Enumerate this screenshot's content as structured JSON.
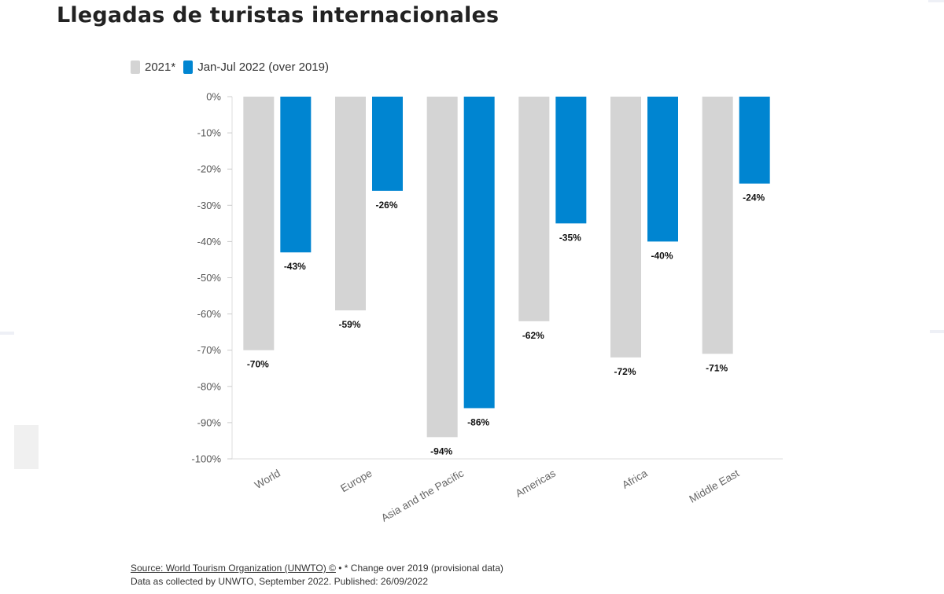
{
  "title": "Llegadas de turistas internacionales",
  "footer": {
    "source_link": "Source: World Tourism Organization (UNWTO) ©",
    "source_note": " • * Change over 2019 (provisional data)",
    "collected": "Data as collected by UNWTO, September 2022. Published: 26/09/2022"
  },
  "colors": {
    "series_2021": "#d4d4d4",
    "series_2022": "#0085d1"
  },
  "chart_data": {
    "type": "bar",
    "title": "Llegadas de turistas internacionales",
    "xlabel": "",
    "ylabel": "",
    "ylim": [
      -100,
      0
    ],
    "yticks": [
      0,
      -10,
      -20,
      -30,
      -40,
      -50,
      -60,
      -70,
      -80,
      -90,
      -100
    ],
    "ytick_labels": [
      "0%",
      "-10%",
      "-20%",
      "-30%",
      "-40%",
      "-50%",
      "-60%",
      "-70%",
      "-80%",
      "-90%",
      "-100%"
    ],
    "categories": [
      "World",
      "Europe",
      "Asia and the Pacific",
      "Americas",
      "Africa",
      "Middle East"
    ],
    "grid": false,
    "legend_position": "top-left",
    "series": [
      {
        "name": "2021*",
        "color": "#d4d4d4",
        "values": [
          -70,
          -59,
          -94,
          -62,
          -72,
          -71
        ],
        "labels": [
          "-70%",
          "-59%",
          "-94%",
          "-62%",
          "-72%",
          "-71%"
        ]
      },
      {
        "name": "Jan-Jul 2022 (over 2019)",
        "color": "#0085d1",
        "values": [
          -43,
          -26,
          -86,
          -35,
          -40,
          -24
        ],
        "labels": [
          "-43%",
          "-26%",
          "-86%",
          "-35%",
          "-40%",
          "-24%"
        ]
      }
    ]
  }
}
